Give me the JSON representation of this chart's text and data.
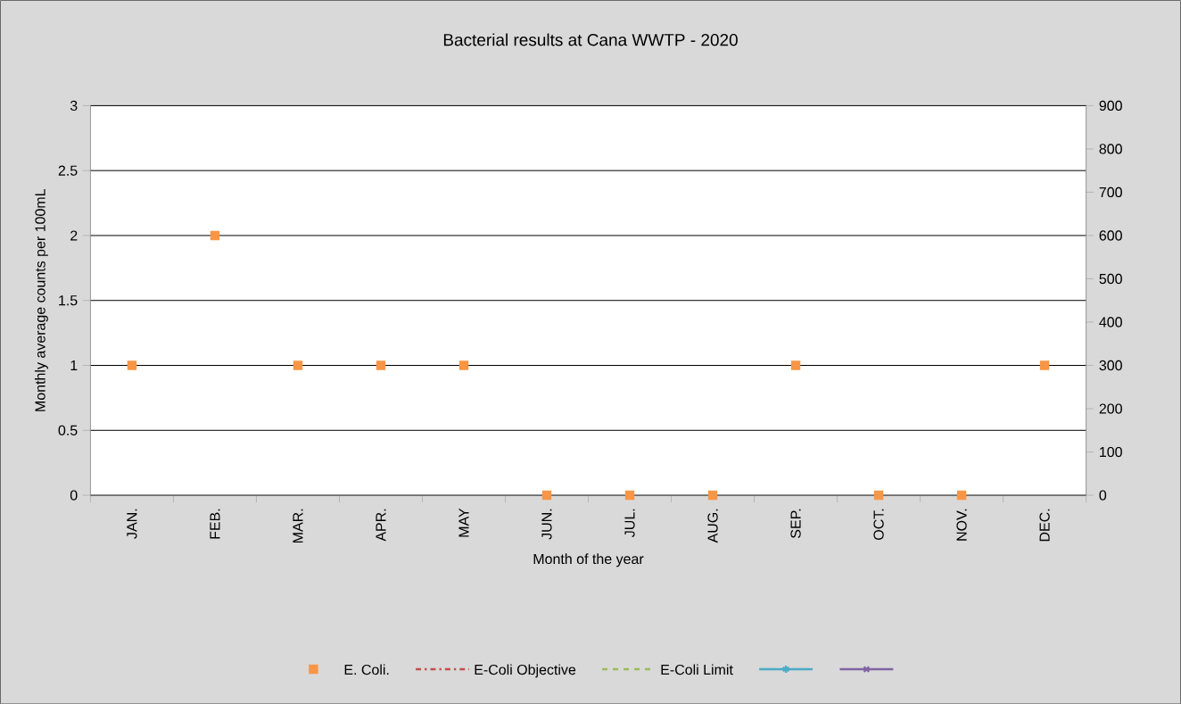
{
  "chart_data": {
    "type": "line",
    "title": "Bacterial results at Cana WWTP - 2020",
    "xlabel": "Month of the year",
    "ylabel": "Monthly average counts per 100mL",
    "categories": [
      "JAN.",
      "FEB.",
      "MAR.",
      "APR.",
      "MAY",
      "JUN.",
      "JUL.",
      "AUG.",
      "SEP.",
      "OCT.",
      "NOV.",
      "DEC."
    ],
    "series": [
      {
        "name": "E. Coli.",
        "type": "scatter",
        "marker": "square",
        "color": "#f79646",
        "values": [
          1,
          2,
          1,
          1,
          1,
          0,
          0,
          0,
          1,
          0,
          0,
          1
        ]
      },
      {
        "name": "E-Coli Objective",
        "marker": "none",
        "line_style": "dotted",
        "color": "#c0504d",
        "values": [
          null,
          null,
          null,
          null,
          null,
          null,
          null,
          null,
          null,
          null,
          null,
          null
        ]
      },
      {
        "name": "E-Coli Limit",
        "marker": "none",
        "line_style": "dashed",
        "color": "#9bbb59",
        "values": [
          null,
          null,
          null,
          null,
          null,
          null,
          null,
          null,
          null,
          null,
          null,
          null
        ]
      },
      {
        "marker": "star",
        "color": "#4bacc6",
        "values": [
          null,
          null,
          null,
          null,
          null,
          null,
          null,
          null,
          null,
          null,
          null,
          null
        ]
      },
      {
        "marker": "cross",
        "color": "#8064a2",
        "values": [
          null,
          null,
          null,
          null,
          null,
          null,
          null,
          null,
          null,
          null,
          null,
          null
        ]
      }
    ],
    "ylim": [
      0,
      3
    ],
    "yticks": [
      0,
      0.5,
      1,
      1.5,
      2,
      2.5,
      3
    ],
    "y2lim": [
      0,
      900
    ],
    "y2ticks": [
      0,
      100,
      200,
      300,
      400,
      500,
      600,
      700,
      800,
      900
    ],
    "grid": "y",
    "legend": "bottom"
  }
}
